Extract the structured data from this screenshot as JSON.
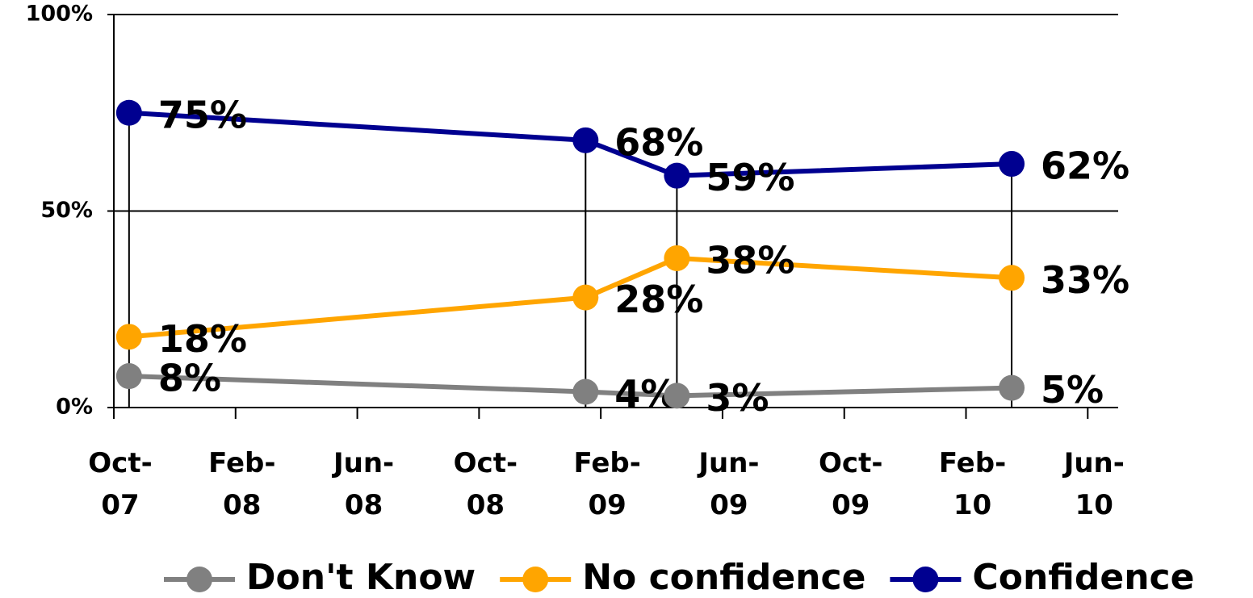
{
  "chart_data": {
    "type": "line",
    "x": [
      "2007-10",
      "2009-01",
      "2009-04",
      "2010-03"
    ],
    "series": [
      {
        "name": "Don't Know",
        "color": "#808080",
        "values": [
          8,
          4,
          3,
          5
        ],
        "value_labels": [
          "8%",
          "4%",
          "3%",
          "5%"
        ]
      },
      {
        "name": "No confidence",
        "color": "#FFA500",
        "values": [
          18,
          28,
          38,
          33
        ],
        "value_labels": [
          "18%",
          "28%",
          "38%",
          "33%"
        ]
      },
      {
        "name": "Confidence",
        "color": "#000090",
        "values": [
          75,
          68,
          59,
          62
        ],
        "value_labels": [
          "75%",
          "68%",
          "59%",
          "62%"
        ]
      }
    ],
    "xlim": [
      "2007-10",
      "2010-07"
    ],
    "xticks": [
      {
        "value": "2007-10",
        "label": "Oct-07"
      },
      {
        "value": "2008-02",
        "label": "Feb-08"
      },
      {
        "value": "2008-06",
        "label": "Jun-08"
      },
      {
        "value": "2008-10",
        "label": "Oct-08"
      },
      {
        "value": "2009-02",
        "label": "Feb-09"
      },
      {
        "value": "2009-06",
        "label": "Jun-09"
      },
      {
        "value": "2009-10",
        "label": "Oct-09"
      },
      {
        "value": "2010-02",
        "label": "Feb-10"
      },
      {
        "value": "2010-06",
        "label": "Jun-10"
      }
    ],
    "ylim": [
      0,
      100
    ],
    "yticks": [
      {
        "value": 0,
        "label": "0%"
      },
      {
        "value": 50,
        "label": "50%"
      },
      {
        "value": 100,
        "label": "100%"
      }
    ],
    "grid": true,
    "legend": "bottom"
  }
}
